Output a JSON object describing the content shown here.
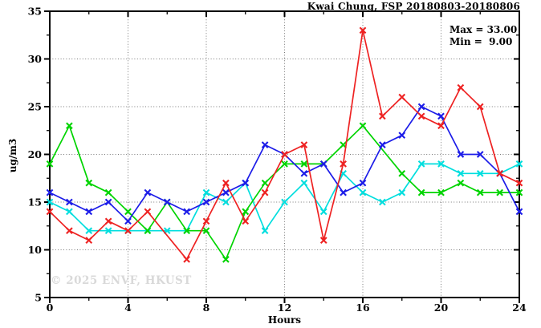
{
  "title": "Kwai Chung, FSP 20180803-20180806",
  "legend": {
    "max_line": "Max = 33.00",
    "min_line": "Min =  9.00"
  },
  "watermark": "© 2025 ENVF, HKUST",
  "chart_data": {
    "type": "line",
    "title": "Kwai Chung, FSP 20180803-20180806",
    "xlabel": "Hours",
    "ylabel": "ug/m3",
    "xlim": [
      0,
      24
    ],
    "ylim": [
      5,
      35
    ],
    "x": [
      0,
      1,
      2,
      3,
      4,
      5,
      6,
      7,
      8,
      9,
      10,
      11,
      12,
      13,
      14,
      15,
      16,
      17,
      18,
      19,
      20,
      21,
      22,
      23,
      24
    ],
    "x_major_ticks": [
      0,
      4,
      8,
      12,
      16,
      20,
      24
    ],
    "x_minor_ticks": [
      2,
      6,
      10,
      14,
      18,
      22
    ],
    "y_major_ticks": [
      5,
      10,
      15,
      20,
      25,
      30,
      35
    ],
    "y_minor_ticks": [
      7.5,
      12.5,
      17.5,
      22.5,
      27.5,
      32.5
    ],
    "x_gridlines": [
      4,
      8,
      12,
      16,
      20
    ],
    "y_gridlines": [
      10,
      15,
      20,
      25,
      30
    ],
    "grid_style": "dotted",
    "grid_color": "#787878",
    "marker": "x",
    "series": [
      {
        "name": "cyan",
        "color": "#00dede",
        "values": [
          15,
          14,
          12,
          12,
          12,
          12,
          12,
          12,
          16,
          15,
          17,
          12,
          15,
          17,
          14,
          18,
          16,
          15,
          16,
          19,
          19,
          18,
          18,
          18,
          19
        ]
      },
      {
        "name": "green",
        "color": "#00d400",
        "values": [
          19,
          23,
          17,
          16,
          14,
          12,
          15,
          12,
          12,
          9,
          14,
          17,
          19,
          19,
          19,
          21,
          23,
          null,
          18,
          16,
          16,
          17,
          16,
          16,
          16
        ]
      },
      {
        "name": "blue",
        "color": "#1c1ce8",
        "values": [
          16,
          15,
          14,
          15,
          13,
          16,
          15,
          14,
          15,
          16,
          17,
          21,
          20,
          18,
          19,
          16,
          17,
          21,
          22,
          25,
          24,
          20,
          20,
          18,
          14
        ]
      },
      {
        "name": "red",
        "color": "#ee2222",
        "values": [
          14,
          12,
          11,
          13,
          12,
          14,
          null,
          9,
          13,
          17,
          13,
          16,
          20,
          21,
          11,
          19,
          33,
          24,
          26,
          24,
          23,
          27,
          25,
          18,
          17
        ]
      }
    ],
    "stats": {
      "max": 33.0,
      "min": 9.0
    }
  }
}
